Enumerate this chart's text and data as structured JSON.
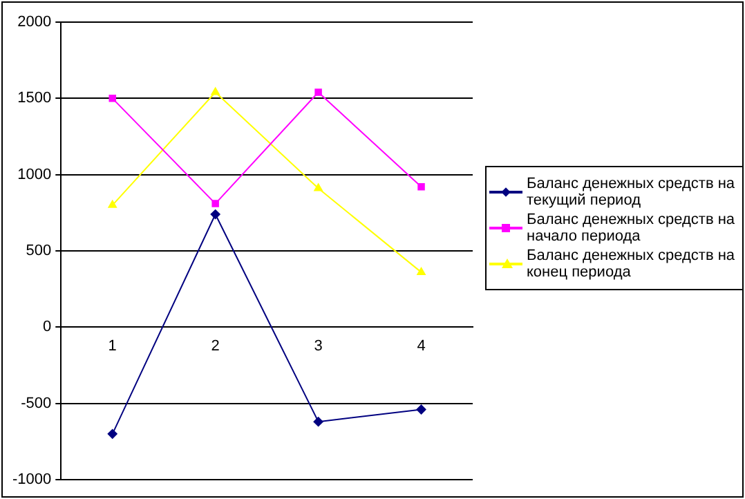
{
  "chart_data": {
    "type": "line",
    "categories": [
      "1",
      "2",
      "3",
      "4"
    ],
    "series": [
      {
        "name": "Баланс денежных средств на текущий период",
        "color": "#000080",
        "marker": "diamond",
        "values": [
          -700,
          740,
          -620,
          -540
        ]
      },
      {
        "name": "Баланс денежных средств на начало периода",
        "color": "#ff00ff",
        "marker": "square",
        "values": [
          1500,
          810,
          1540,
          920
        ]
      },
      {
        "name": "Баланс денежных средств на конец периода",
        "color": "#ffff00",
        "marker": "triangle",
        "values": [
          800,
          1540,
          910,
          360
        ]
      }
    ],
    "ylim": [
      -1000,
      2000
    ],
    "yticks": [
      -1000,
      -500,
      0,
      500,
      1000,
      1500,
      2000
    ],
    "grid": "y",
    "legend": "right"
  }
}
